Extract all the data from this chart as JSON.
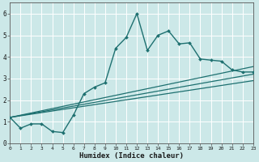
{
  "xlabel": "Humidex (Indice chaleur)",
  "bg_color": "#cce8e8",
  "grid_color": "#ffffff",
  "line_color": "#1e7070",
  "main_x": [
    0,
    1,
    2,
    3,
    4,
    5,
    6,
    7,
    8,
    9,
    10,
    11,
    12,
    13,
    14,
    15,
    16,
    17,
    18,
    19,
    20,
    21,
    22,
    23
  ],
  "main_y": [
    1.2,
    0.7,
    0.9,
    0.9,
    0.55,
    0.5,
    1.3,
    2.3,
    2.6,
    2.8,
    4.4,
    4.9,
    6.0,
    4.3,
    5.0,
    5.2,
    4.6,
    4.65,
    3.9,
    3.85,
    3.8,
    3.4,
    3.3,
    3.3
  ],
  "line1_x": [
    0,
    23
  ],
  "line1_y": [
    1.2,
    3.55
  ],
  "line2_x": [
    0,
    23
  ],
  "line2_y": [
    1.2,
    2.9
  ],
  "line3_x": [
    0,
    23
  ],
  "line3_y": [
    1.2,
    3.2
  ],
  "xlim": [
    0,
    23
  ],
  "ylim": [
    0,
    6.5
  ],
  "yticks": [
    0,
    1,
    2,
    3,
    4,
    5,
    6
  ],
  "xticks": [
    0,
    1,
    2,
    3,
    4,
    5,
    6,
    7,
    8,
    9,
    10,
    11,
    12,
    13,
    14,
    15,
    16,
    17,
    18,
    19,
    20,
    21,
    22,
    23
  ]
}
